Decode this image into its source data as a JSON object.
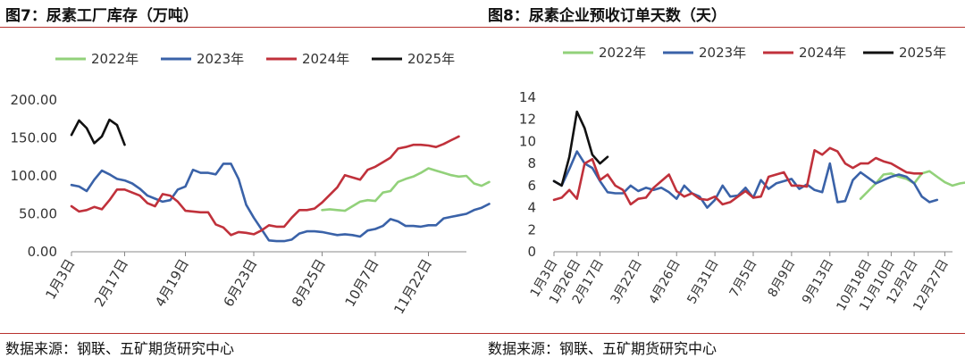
{
  "figures": [
    {
      "title": "图7：尿素工厂库存（万吨）",
      "source": "数据来源：钢联、五矿期货研究中心"
    },
    {
      "title": "图8：尿素企业预收订单天数（天）",
      "source": "数据来源：钢联、五矿期货研究中心"
    }
  ],
  "colors": {
    "2022年": "#92d17a",
    "2023年": "#3a62a8",
    "2024年": "#c0313b",
    "2025年": "#111111",
    "rule": "#b8322e"
  },
  "chart_data": [
    {
      "type": "line",
      "title": "图7：尿素工厂库存（万吨）",
      "xlabel": "",
      "ylabel": "",
      "ylim": [
        0,
        200
      ],
      "y_ticks": [
        "0.00",
        "50.00",
        "100.00",
        "150.00",
        "200.00"
      ],
      "x_ticks": [
        "1月3日",
        "2月17日",
        "4月19日",
        "6月23日",
        "8月25日",
        "10月7日",
        "11月22日"
      ],
      "x_tick_weeks": [
        0,
        7,
        15,
        24,
        33,
        40,
        47
      ],
      "x_range_weeks": [
        0,
        52
      ],
      "grid": false,
      "legend": "top",
      "series": [
        {
          "name": "2022年",
          "start_week": 33,
          "values": [
            55,
            56,
            55,
            54,
            60,
            66,
            68,
            67,
            78,
            80,
            92,
            96,
            99,
            104,
            110,
            107,
            104,
            101,
            99,
            100,
            90,
            87,
            92
          ]
        },
        {
          "name": "2023年",
          "start_week": 0,
          "values": [
            88,
            86,
            80,
            95,
            107,
            102,
            96,
            94,
            90,
            83,
            74,
            70,
            66,
            68,
            82,
            86,
            108,
            104,
            104,
            102,
            116,
            116,
            96,
            62,
            45,
            30,
            15,
            14,
            14,
            16,
            24,
            27,
            27,
            26,
            24,
            22,
            23,
            22,
            20,
            28,
            30,
            34,
            43,
            40,
            34,
            34,
            33,
            35,
            35,
            44,
            46,
            48,
            50,
            55,
            58,
            63
          ]
        },
        {
          "name": "2024年",
          "start_week": 0,
          "values": [
            60,
            53,
            55,
            59,
            56,
            68,
            82,
            82,
            78,
            74,
            64,
            60,
            76,
            74,
            66,
            54,
            53,
            52,
            52,
            36,
            32,
            22,
            26,
            25,
            23,
            28,
            35,
            33,
            33,
            45,
            55,
            55,
            57,
            65,
            75,
            85,
            101,
            98,
            95,
            108,
            112,
            118,
            124,
            136,
            138,
            141,
            141,
            140,
            138,
            142,
            147,
            152
          ]
        },
        {
          "name": "2025年",
          "start_week": 0,
          "values": [
            154,
            173,
            163,
            143,
            152,
            174,
            167,
            141
          ]
        }
      ]
    },
    {
      "type": "line",
      "title": "图8：尿素企业预收订单天数（天）",
      "xlabel": "",
      "ylabel": "",
      "ylim": [
        0,
        14
      ],
      "y_ticks": [
        "0",
        "2",
        "4",
        "6",
        "8",
        "10",
        "12",
        "14"
      ],
      "x_ticks": [
        "1月3日",
        "1月26日",
        "2月17日",
        "3月22日",
        "4月26日",
        "5月31日",
        "7月5日",
        "8月9日",
        "9月13日",
        "10月18日",
        "11月10日",
        "12月2日",
        "12月27日"
      ],
      "x_tick_weeks": [
        0,
        3,
        6,
        11,
        16,
        21,
        26,
        31,
        36,
        41,
        44,
        47,
        51
      ],
      "x_range_weeks": [
        0,
        52
      ],
      "grid": false,
      "legend": "top",
      "series": [
        {
          "name": "2022年",
          "start_week": 40,
          "values": [
            4.8,
            5.5,
            6.2,
            7.0,
            7.1,
            6.8,
            6.6,
            6.2,
            7.1,
            7.3,
            6.8,
            6.3,
            6.0,
            6.2,
            6.3
          ]
        },
        {
          "name": "2023年",
          "start_week": 0,
          "values": [
            6.4,
            6.0,
            7.5,
            9.1,
            8.0,
            7.6,
            6.4,
            5.4,
            5.3,
            5.3,
            6.0,
            5.5,
            5.8,
            5.6,
            5.8,
            5.4,
            4.8,
            6.0,
            5.3,
            5.0,
            4.0,
            4.7,
            6.0,
            5.0,
            5.1,
            5.8,
            4.9,
            6.5,
            5.7,
            6.2,
            6.4,
            6.6,
            5.7,
            6.1,
            5.6,
            5.4,
            8.0,
            4.5,
            4.6,
            6.5,
            7.2,
            6.7,
            6.2,
            6.5,
            6.8,
            7.0,
            6.8,
            6.2,
            5.0,
            4.5,
            4.7
          ]
        },
        {
          "name": "2024年",
          "start_week": 0,
          "values": [
            4.7,
            4.9,
            5.6,
            4.8,
            8.0,
            8.4,
            6.5,
            7.0,
            6.0,
            5.6,
            4.3,
            4.8,
            4.9,
            5.8,
            6.4,
            7.0,
            5.5,
            5.0,
            5.3,
            4.8,
            4.7,
            5.0,
            4.3,
            4.5,
            5.0,
            5.5,
            4.9,
            5.0,
            6.8,
            7.0,
            7.2,
            6.0,
            6.0,
            5.9,
            9.2,
            8.8,
            9.4,
            9.1,
            8.0,
            7.6,
            8.0,
            8.0,
            8.5,
            8.2,
            8.0,
            7.6,
            7.2,
            7.1,
            7.1
          ]
        },
        {
          "name": "2025年",
          "start_week": 0,
          "values": [
            6.4,
            6.0,
            8.6,
            12.7,
            11.2,
            8.8,
            8.0,
            8.6
          ]
        }
      ]
    }
  ]
}
